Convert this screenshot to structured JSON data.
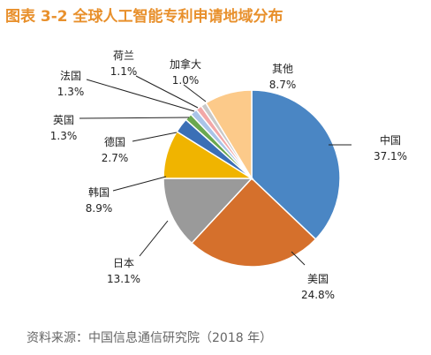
{
  "title": "图表 3-2 全球人工智能专利申请地域分布",
  "source": "资料来源：中国信息通信研究院（2018 年）",
  "chart_data": {
    "type": "pie",
    "title": "图表 3-2 全球人工智能专利申请地域分布",
    "slices": [
      {
        "label": "中国",
        "value": 37.1,
        "value_label": "37.1%",
        "color": "#4a86c4"
      },
      {
        "label": "美国",
        "value": 24.8,
        "value_label": "24.8%",
        "color": "#d5702c"
      },
      {
        "label": "日本",
        "value": 13.1,
        "value_label": "13.1%",
        "color": "#9a9a9a"
      },
      {
        "label": "韩国",
        "value": 8.9,
        "value_label": "8.9%",
        "color": "#f0b400"
      },
      {
        "label": "德国",
        "value": 2.7,
        "value_label": "2.7%",
        "color": "#3b6fb6"
      },
      {
        "label": "英国",
        "value": 1.3,
        "value_label": "1.3%",
        "color": "#6aa84f"
      },
      {
        "label": "法国",
        "value": 1.3,
        "value_label": "1.3%",
        "color": "#a9c4e8"
      },
      {
        "label": "荷兰",
        "value": 1.1,
        "value_label": "1.1%",
        "color": "#f2a7a7"
      },
      {
        "label": "加拿大",
        "value": 1.0,
        "value_label": "1.0%",
        "color": "#c9c9c9"
      },
      {
        "label": "其他",
        "value": 8.7,
        "value_label": "8.7%",
        "color": "#fcca8a"
      }
    ]
  }
}
